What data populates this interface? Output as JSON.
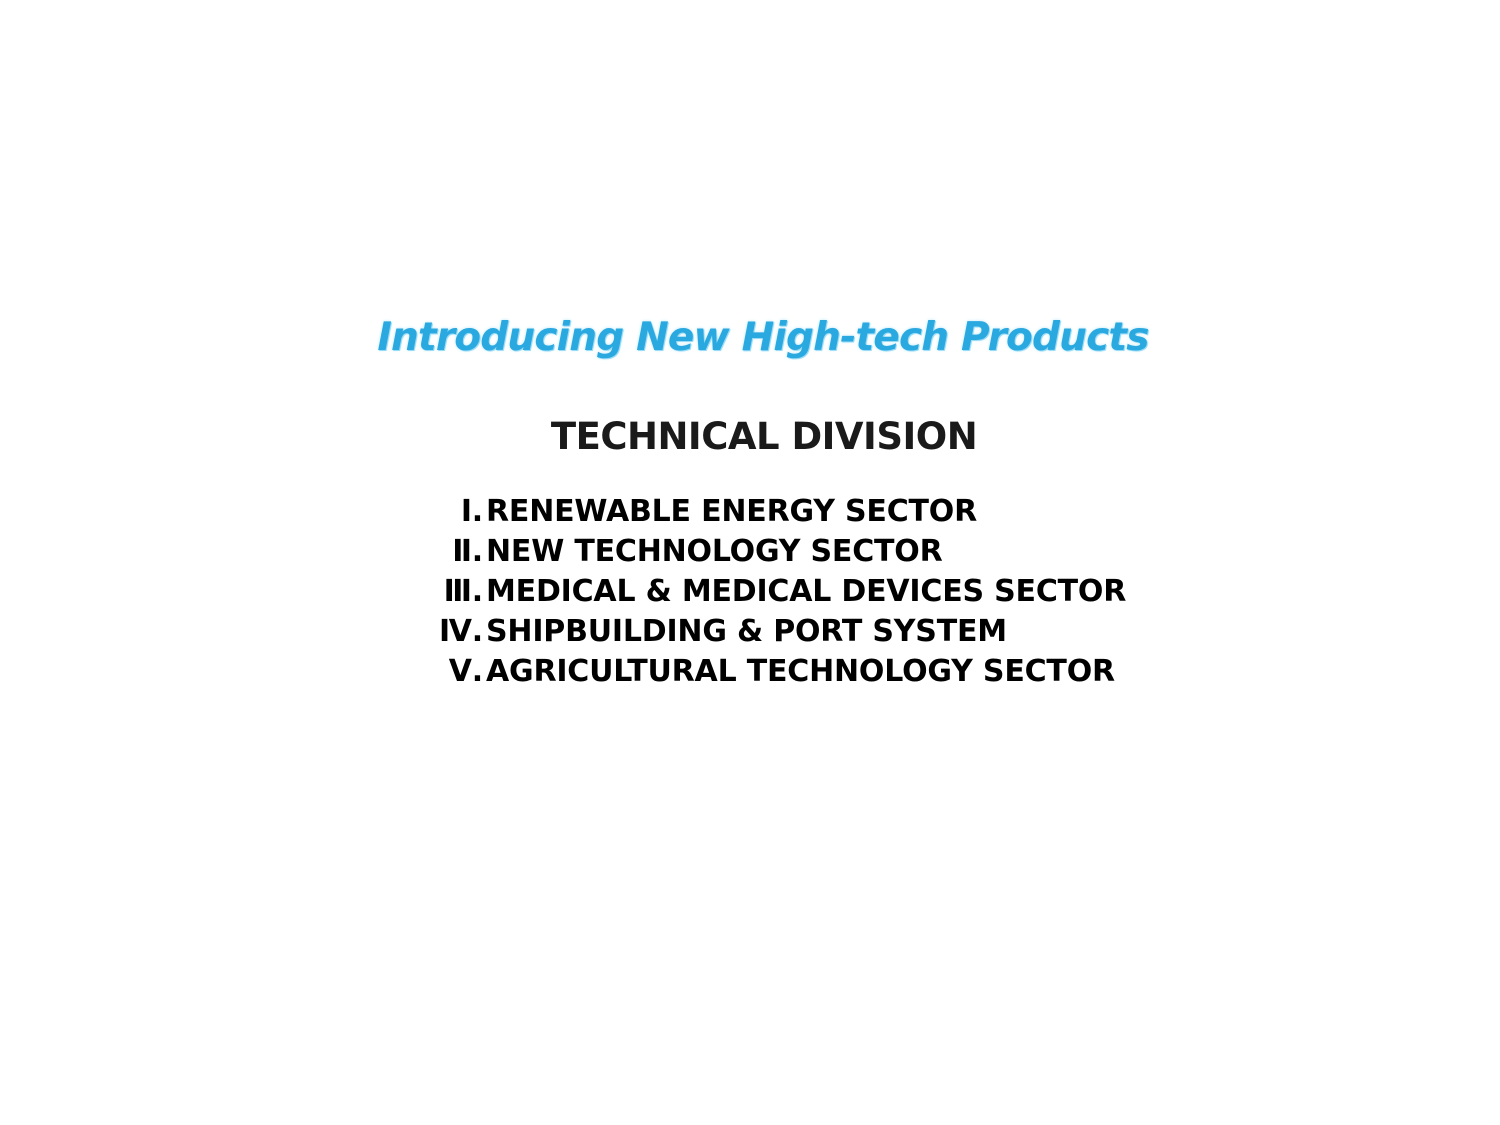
{
  "slide": {
    "headline": "Introducing New High-tech Products",
    "headline_color": "#2aa8e0",
    "division_title": "TECHNICAL DIVISION",
    "sectors": [
      {
        "num": "Ⅰ.",
        "label": "RENEWABLE ENERGY SECTOR"
      },
      {
        "num": "Ⅱ.",
        "label": "NEW TECHNOLOGY SECTOR"
      },
      {
        "num": "Ⅲ.",
        "label": "MEDICAL & MEDICAL DEVICES SECTOR"
      },
      {
        "num": "Ⅳ.",
        "label": "SHIPBUILDING & PORT SYSTEM"
      },
      {
        "num": "Ⅴ.",
        "label": "AGRICULTURAL TECHNOLOGY SECTOR"
      }
    ]
  }
}
